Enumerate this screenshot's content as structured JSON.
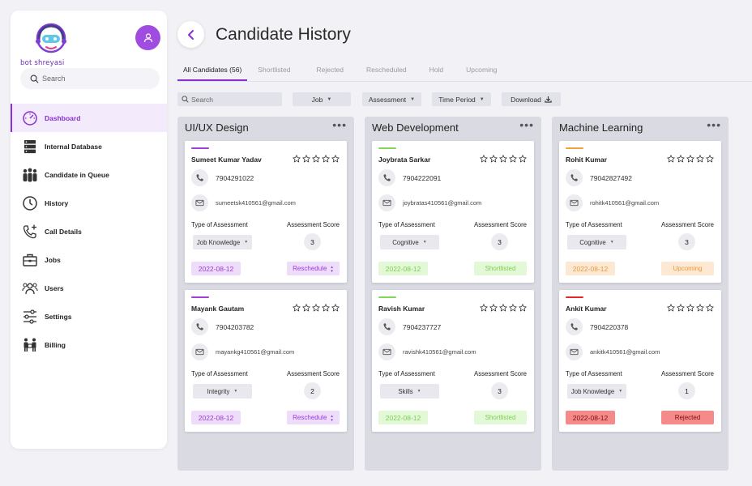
{
  "brand": {
    "name": "bot shreyasi",
    "accent": "#8a2ed6"
  },
  "sidebar": {
    "search_placeholder": "Search",
    "items": [
      {
        "label": "Dashboard",
        "icon": "dashboard-gauge-icon",
        "active": true
      },
      {
        "label": "Internal Database",
        "icon": "database-icon"
      },
      {
        "label": "Candidate in Queue",
        "icon": "people-queue-icon"
      },
      {
        "label": "History",
        "icon": "clock-icon"
      },
      {
        "label": "Call Details",
        "icon": "phone-plus-icon"
      },
      {
        "label": "Jobs",
        "icon": "briefcase-icon"
      },
      {
        "label": "Users",
        "icon": "users-icon"
      },
      {
        "label": "Settings",
        "icon": "sliders-icon"
      },
      {
        "label": "Billing",
        "icon": "billing-people-icon"
      }
    ]
  },
  "header": {
    "title": "Candidate History"
  },
  "tabs": [
    {
      "label": "All Candidates (56)",
      "active": true
    },
    {
      "label": "Shortlisted"
    },
    {
      "label": "Rejected"
    },
    {
      "label": "Rescheduled"
    },
    {
      "label": "Hold"
    },
    {
      "label": "Upcoming"
    }
  ],
  "filters": {
    "search_placeholder": "Search",
    "job": "Job",
    "assessment": "Assessment",
    "time_period": "Time Period",
    "download": "Download"
  },
  "labels": {
    "type_of_assessment": "Type of Assessment",
    "assessment_score": "Assessment Score"
  },
  "columns": [
    {
      "title": "UI/UX Design",
      "cards": [
        {
          "name": "Sumeet Kumar Yadav",
          "phone": "7904291022",
          "email": "sumeetsk410561@gmail.com",
          "assessment_type": "Job Knowledge",
          "score": "3",
          "date": "2022-08-12",
          "status": "Reschedule",
          "accent": "#a03ed9",
          "date_bg": "#eedcfb",
          "date_fg": "#9b3ad6",
          "status_bg": "#eedcfb",
          "status_fg": "#9b3ad6",
          "sortable": true
        },
        {
          "name": "Mayank Gautam",
          "phone": "7904203782",
          "email": "mayankg410561@gmail.com",
          "assessment_type": "Integrity",
          "score": "2",
          "date": "2022-08-12",
          "status": "Reschedule",
          "accent": "#a03ed9",
          "date_bg": "#eedcfb",
          "date_fg": "#9b3ad6",
          "status_bg": "#eedcfb",
          "status_fg": "#9b3ad6",
          "sortable": true
        }
      ]
    },
    {
      "title": "Web Development",
      "cards": [
        {
          "name": "Joybrata Sarkar",
          "phone": "7904222091",
          "email": "joybratas410561@gmail.com",
          "assessment_type": "Cognitive",
          "score": "3",
          "date": "2022-08-12",
          "status": "Shortlisted",
          "accent": "#7ed957",
          "date_bg": "#e3f8d6",
          "date_fg": "#7ccf52",
          "status_bg": "#e3f8d6",
          "status_fg": "#7ccf52",
          "sortable": false
        },
        {
          "name": "Ravish Kumar",
          "phone": "7904237727",
          "email": "ravishk410561@gmail.com",
          "assessment_type": "Skills",
          "score": "3",
          "date": "2022-08-12",
          "status": "Shortlisted",
          "accent": "#7ed957",
          "date_bg": "#e3f8d6",
          "date_fg": "#7ccf52",
          "status_bg": "#e3f8d6",
          "status_fg": "#7ccf52",
          "sortable": false
        }
      ]
    },
    {
      "title": "Machine Learning",
      "cards": [
        {
          "name": "Rohit Kumar",
          "phone": "79042827492",
          "email": "rohitk410561@gmail.com",
          "assessment_type": "Cognitive",
          "score": "3",
          "date": "2022-08-12",
          "status": "Upcoming",
          "accent": "#f0a23c",
          "date_bg": "#fde9d3",
          "date_fg": "#e89a3d",
          "status_bg": "#fde9d3",
          "status_fg": "#e89a3d",
          "sortable": false
        },
        {
          "name": "Ankit Kumar",
          "phone": "7904220378",
          "email": "ankitk410561@gmail.com",
          "assessment_type": "Job Knowledge",
          "score": "1",
          "date": "2022-08-12",
          "status": "Rejected",
          "accent": "#e02828",
          "date_bg": "#f48a8a",
          "date_fg": "#7a0f0f",
          "status_bg": "#f48a8a",
          "status_fg": "#7a0f0f",
          "sortable": false
        }
      ]
    }
  ]
}
